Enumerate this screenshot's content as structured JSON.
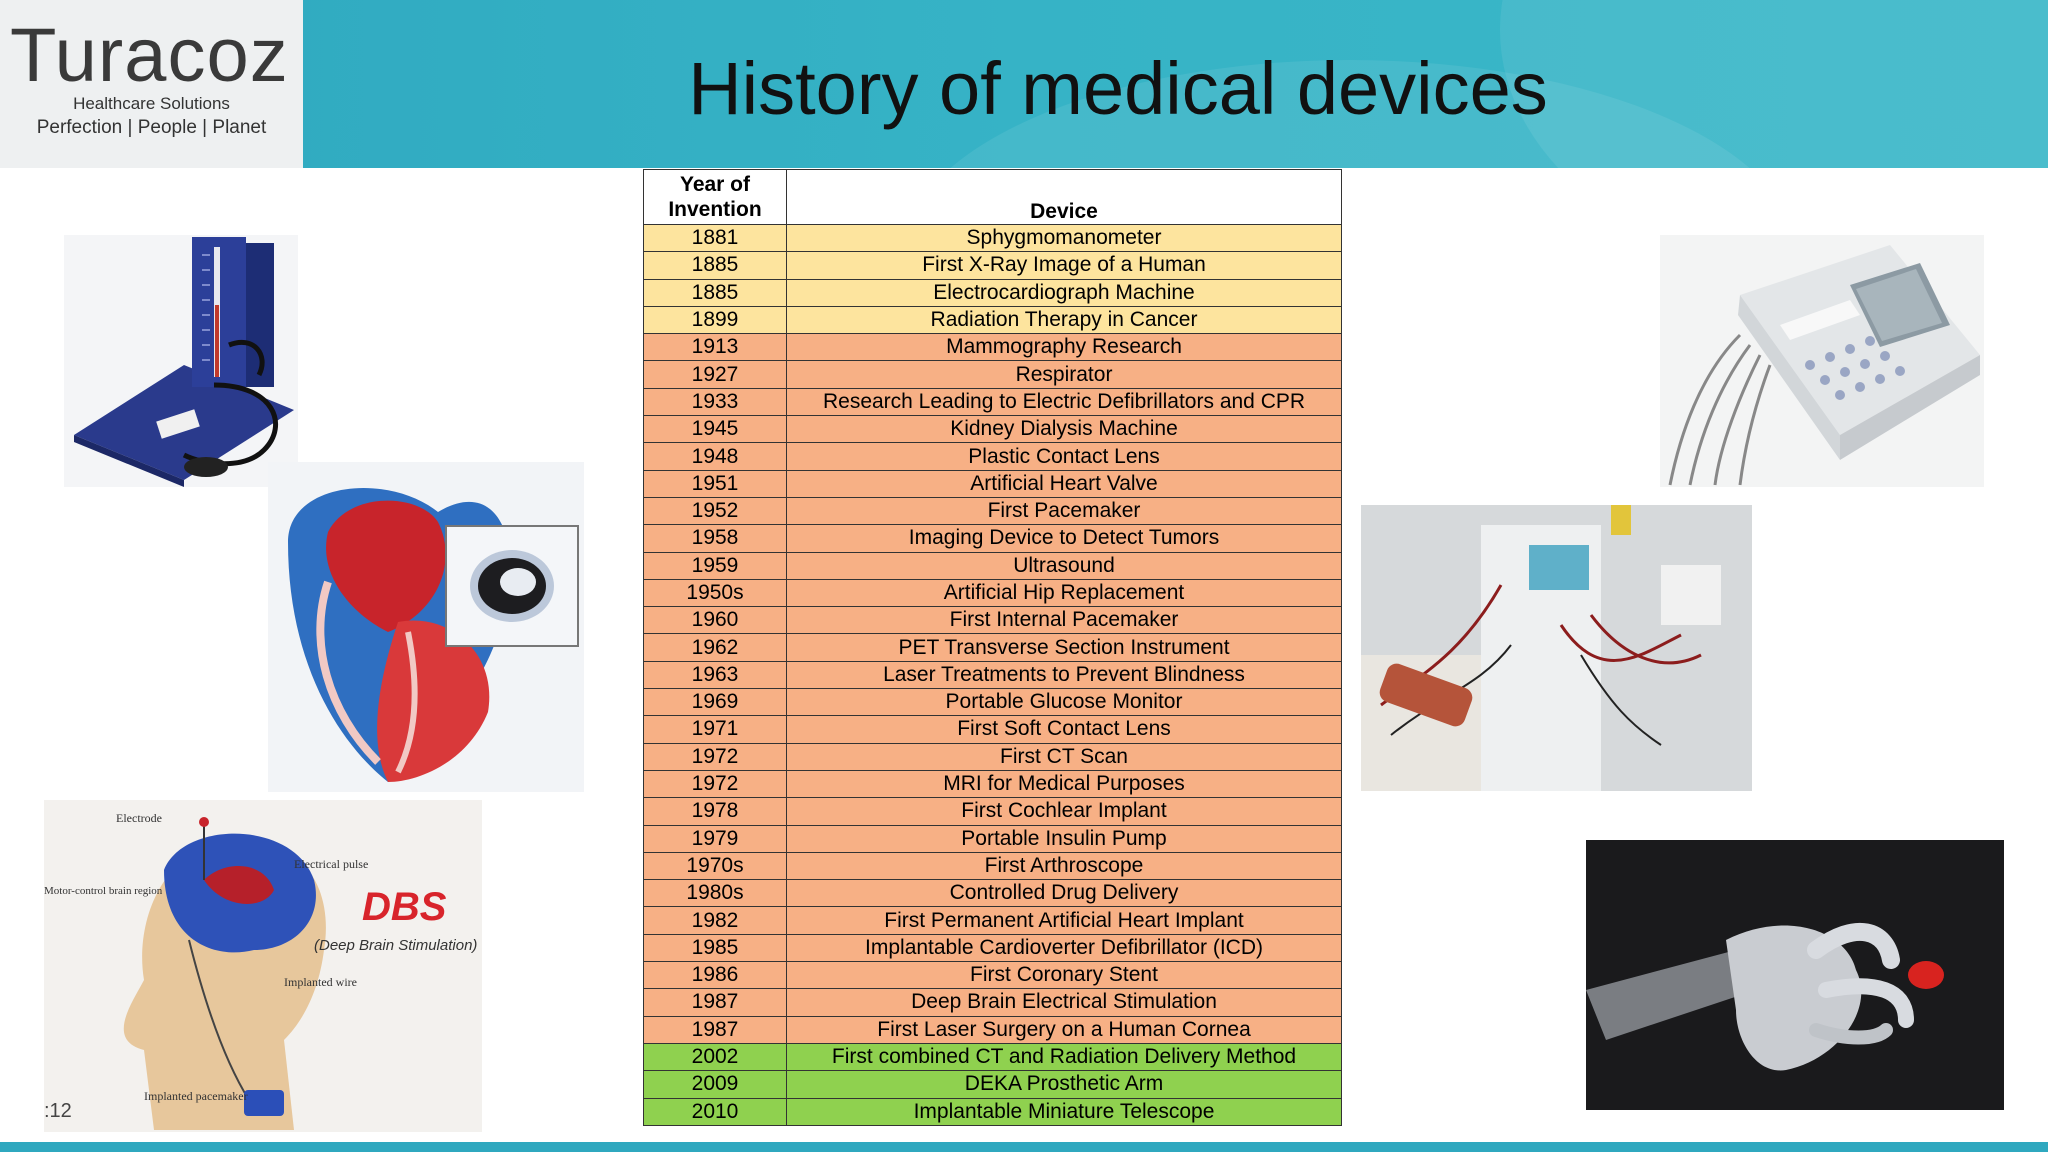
{
  "header": {
    "logo_word": "Turacoz",
    "logo_sub": "Healthcare Solutions",
    "logo_tag": "Perfection | People | Planet",
    "title": "History of medical devices"
  },
  "table": {
    "col_year": "Year of Invention",
    "col_device": "Device",
    "rows": [
      {
        "year": "1881",
        "device": "Sphygmomanometer",
        "c": "y"
      },
      {
        "year": "1885",
        "device": "First X-Ray Image of a Human",
        "c": "y"
      },
      {
        "year": "1885",
        "device": "Electrocardiograph Machine",
        "c": "y"
      },
      {
        "year": "1899",
        "device": "Radiation Therapy in Cancer",
        "c": "y"
      },
      {
        "year": "1913",
        "device": "Mammography Research",
        "c": "o"
      },
      {
        "year": "1927",
        "device": "Respirator",
        "c": "o"
      },
      {
        "year": "1933",
        "device": "Research Leading to Electric Defibrillators and CPR",
        "c": "o"
      },
      {
        "year": "1945",
        "device": "Kidney Dialysis Machine",
        "c": "o"
      },
      {
        "year": "1948",
        "device": "Plastic Contact Lens",
        "c": "o"
      },
      {
        "year": "1951",
        "device": "Artificial Heart Valve",
        "c": "o"
      },
      {
        "year": "1952",
        "device": "First Pacemaker",
        "c": "o"
      },
      {
        "year": "1958",
        "device": "Imaging Device to Detect Tumors",
        "c": "o"
      },
      {
        "year": "1959",
        "device": "Ultrasound",
        "c": "o"
      },
      {
        "year": "1950s",
        "device": "Artificial Hip Replacement",
        "c": "o"
      },
      {
        "year": "1960",
        "device": "First Internal Pacemaker",
        "c": "o"
      },
      {
        "year": "1962",
        "device": "PET Transverse Section Instrument",
        "c": "o"
      },
      {
        "year": "1963",
        "device": "Laser Treatments to Prevent Blindness",
        "c": "o"
      },
      {
        "year": "1969",
        "device": "Portable Glucose Monitor",
        "c": "o"
      },
      {
        "year": "1971",
        "device": "First Soft Contact Lens",
        "c": "o"
      },
      {
        "year": "1972",
        "device": "First CT Scan",
        "c": "o"
      },
      {
        "year": "1972",
        "device": "MRI for Medical Purposes",
        "c": "o"
      },
      {
        "year": "1978",
        "device": "First Cochlear Implant",
        "c": "o"
      },
      {
        "year": "1979",
        "device": "Portable Insulin Pump",
        "c": "o"
      },
      {
        "year": "1970s",
        "device": "First Arthroscope",
        "c": "o"
      },
      {
        "year": "1980s",
        "device": "Controlled Drug Delivery",
        "c": "o"
      },
      {
        "year": "1982",
        "device": "First Permanent Artificial Heart Implant",
        "c": "o"
      },
      {
        "year": "1985",
        "device": "Implantable Cardioverter Defibrillator (ICD)",
        "c": "o"
      },
      {
        "year": "1986",
        "device": "First Coronary Stent",
        "c": "o"
      },
      {
        "year": "1987",
        "device": "Deep Brain Electrical Stimulation",
        "c": "o"
      },
      {
        "year": "1987",
        "device": "First Laser Surgery on a Human Cornea",
        "c": "o"
      },
      {
        "year": "2002",
        "device": "First combined CT and Radiation Delivery Method",
        "c": "g"
      },
      {
        "year": "2009",
        "device": "DEKA Prosthetic Arm",
        "c": "g"
      },
      {
        "year": "2010",
        "device": "Implantable Miniature Telescope",
        "c": "g"
      }
    ]
  },
  "dbs_labels": {
    "electrode": "Electrode",
    "pulse": "Electrical pulse",
    "motor": "Motor-control brain region",
    "wire": "Implanted wire",
    "pacemaker": "Implanted pacemaker",
    "dbs": "DBS",
    "dbs_full": "(Deep Brain Stimulation)"
  },
  "footer": {
    "slide_number": ":12"
  },
  "colors": {
    "yellow": "#fde49e",
    "orange": "#f7b085",
    "green": "#8fd14f",
    "teal": "#2fa8bf"
  }
}
